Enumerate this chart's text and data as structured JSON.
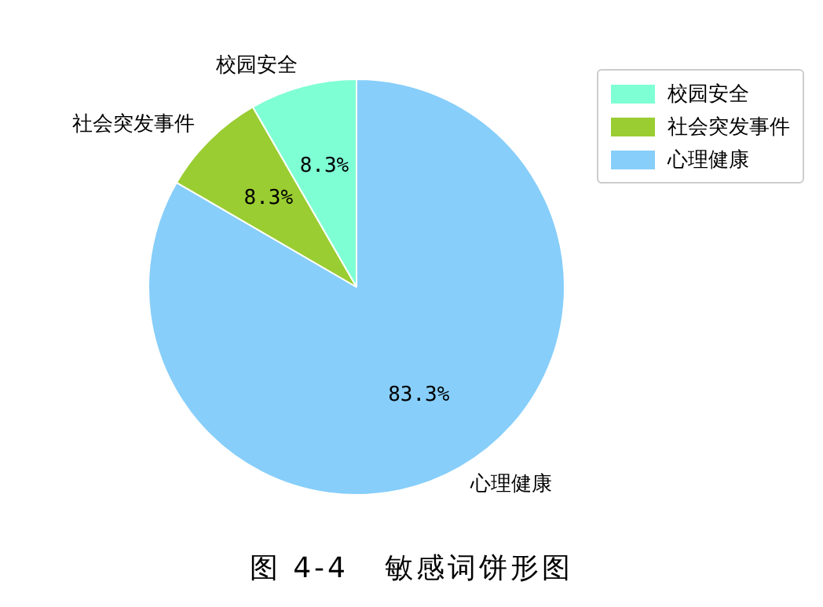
{
  "chart_data": {
    "type": "pie",
    "categories": [
      "校园安全",
      "社会突发事件",
      "心理健康"
    ],
    "values": [
      8.3,
      8.3,
      83.3
    ],
    "colors": [
      "#7fffd4",
      "#9acd32",
      "#87cefa"
    ],
    "value_labels": [
      "8.3%",
      "8.3%",
      "83.3%"
    ],
    "legend": "top right",
    "annotations": [
      "图 4-4   敏感词饼形图"
    ]
  }
}
